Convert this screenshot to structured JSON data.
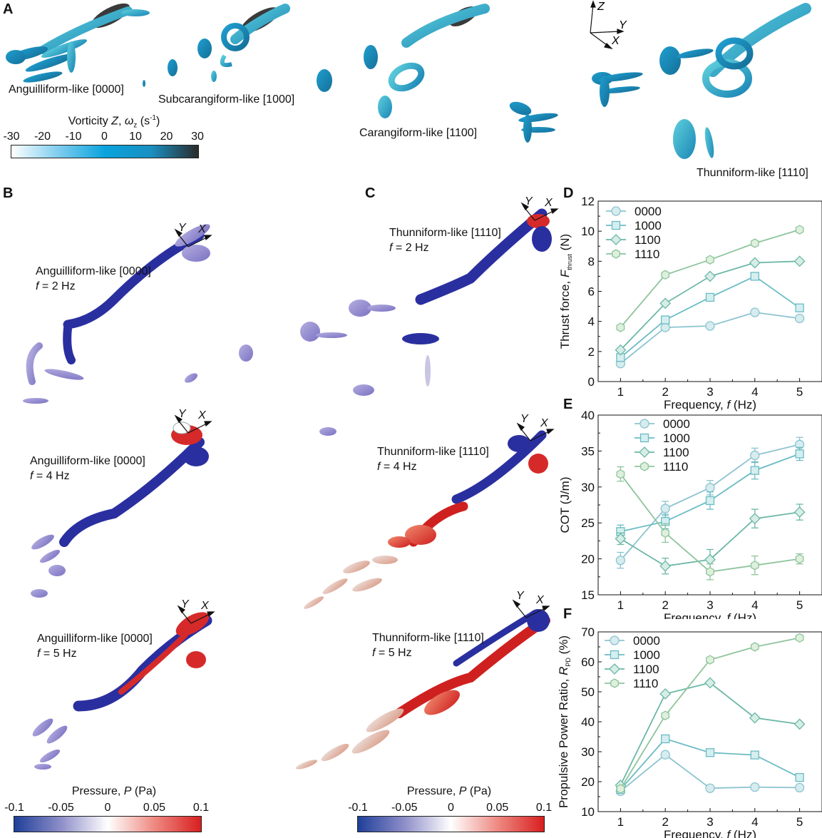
{
  "panel_labels": {
    "A": "A",
    "B": "B",
    "C": "C",
    "D": "D",
    "E": "E",
    "F": "F"
  },
  "panel_a": {
    "captions": [
      "Anguilliform-like [0000]",
      "Subcarangiform-like [1000]",
      "Carangiform-like [1100]",
      "Thunniform-like [1110]"
    ],
    "axes": {
      "z": "Z",
      "y": "Y",
      "x": "X"
    },
    "colorbar": {
      "title_prefix": "Vorticity ",
      "title_italic": "Z",
      "title_sep": ", ",
      "title_symbol": "ω",
      "title_sub": "z",
      "title_unit": " (s",
      "title_sup": "-1",
      "title_end": ")",
      "ticks": [
        "-30",
        "-20",
        "-10",
        "0",
        "10",
        "20",
        "30"
      ],
      "colors": [
        "#ffffff",
        "#7fcdee",
        "#0aa3de",
        "#1a8fc0",
        "#2a2a2a"
      ]
    }
  },
  "panel_b": {
    "captions": [
      {
        "name": "Anguilliform-like [0000]",
        "f_label": "f",
        "freq": " = 2 Hz"
      },
      {
        "name": "Anguilliform-like [0000]",
        "f_label": "f",
        "freq": " = 4 Hz"
      },
      {
        "name": "Anguilliform-like [0000]",
        "f_label": "f",
        "freq": " = 5 Hz"
      }
    ],
    "axes": {
      "y": "Y",
      "x": "X"
    },
    "colorbar": {
      "title_prefix": "Pressure, ",
      "title_italic": "P",
      "title_unit": " (Pa)",
      "ticks": [
        "-0.1",
        "-0.05",
        "0",
        "0.05",
        "0.1"
      ],
      "colors": [
        "#1f3f99",
        "#8e8ec9",
        "#ffffff",
        "#ee8a82",
        "#d81f1f"
      ]
    }
  },
  "panel_c": {
    "captions": [
      {
        "name": "Thunniform-like [1110]",
        "f_label": "f",
        "freq": " = 2 Hz"
      },
      {
        "name": "Thunniform-like [1110]",
        "f_label": "f",
        "freq": " = 4 Hz"
      },
      {
        "name": "Thunniform-like [1110]",
        "f_label": "f",
        "freq": " = 5 Hz"
      }
    ],
    "axes": {
      "y": "Y",
      "x": "X"
    },
    "colorbar": {
      "title_prefix": "Pressure, ",
      "title_italic": "P",
      "title_unit": " (Pa)",
      "ticks": [
        "-0.1",
        "-0.05",
        "0",
        "0.05",
        "0.1"
      ],
      "colors": [
        "#1f3f99",
        "#8e8ec9",
        "#ffffff",
        "#ee8a82",
        "#d81f1f"
      ]
    }
  },
  "series_style": [
    {
      "name": "0000",
      "marker": "circle",
      "color": "#8cc4d0",
      "fill": "#d6ecee"
    },
    {
      "name": "1000",
      "marker": "square",
      "color": "#6bbcc4",
      "fill": "#d5eeef"
    },
    {
      "name": "1100",
      "marker": "diamond",
      "color": "#6cb7a6",
      "fill": "#d6ede6"
    },
    {
      "name": "1110",
      "marker": "hexagon",
      "color": "#8ec49c",
      "fill": "#def0dd"
    }
  ],
  "chart_data": [
    {
      "id": "D",
      "type": "line",
      "x": [
        1,
        2,
        3,
        4,
        5
      ],
      "xlabel_prefix": "Frequency, ",
      "xlabel_italic": "f",
      "xlabel_unit": " (Hz)",
      "ylabel_prefix": "Thrust force, ",
      "ylabel_italic": "F",
      "ylabel_sub": "thrust",
      "ylabel_unit": " (N)",
      "xlim": [
        0.5,
        5.5
      ],
      "ylim": [
        0,
        12
      ],
      "xticks": [
        "1",
        "2",
        "3",
        "4",
        "5"
      ],
      "yticks": [
        "0",
        "2",
        "4",
        "6",
        "8",
        "10",
        "12"
      ],
      "legend": "top-left",
      "series": [
        {
          "name": "0000",
          "values": [
            1.2,
            3.6,
            3.7,
            4.6,
            4.2
          ]
        },
        {
          "name": "1000",
          "values": [
            1.6,
            4.1,
            5.6,
            7.0,
            4.9
          ]
        },
        {
          "name": "1100",
          "values": [
            2.1,
            5.2,
            7.0,
            7.9,
            8.0
          ]
        },
        {
          "name": "1110",
          "values": [
            3.6,
            7.1,
            8.1,
            9.2,
            10.1
          ]
        }
      ]
    },
    {
      "id": "E",
      "type": "line",
      "x": [
        1,
        2,
        3,
        4,
        5
      ],
      "xlabel_prefix": "Frequency, ",
      "xlabel_italic": "f",
      "xlabel_unit": " (Hz)",
      "ylabel_prefix": "COT (J/m)",
      "ylabel_italic": "",
      "ylabel_sub": "",
      "ylabel_unit": "",
      "xlim": [
        0.5,
        5.5
      ],
      "ylim": [
        15,
        40
      ],
      "xticks": [
        "1",
        "2",
        "3",
        "4",
        "5"
      ],
      "yticks": [
        "15",
        "20",
        "25",
        "30",
        "35",
        "40"
      ],
      "legend": "top-left",
      "series": [
        {
          "name": "0000",
          "values": [
            19.8,
            27.0,
            29.9,
            34.4,
            35.9
          ],
          "errors": [
            1.1,
            1.0,
            1.0,
            1.0,
            1.0
          ]
        },
        {
          "name": "1000",
          "values": [
            23.8,
            25.2,
            28.1,
            32.3,
            34.6
          ],
          "errors": [
            0.9,
            1.0,
            1.2,
            1.2,
            0.9
          ]
        },
        {
          "name": "1100",
          "values": [
            22.8,
            19.0,
            19.9,
            25.6,
            26.5
          ],
          "errors": [
            0.8,
            1.1,
            1.4,
            1.3,
            1.1
          ]
        },
        {
          "name": "1110",
          "values": [
            31.8,
            23.6,
            18.2,
            19.1,
            20.0
          ],
          "errors": [
            1.0,
            1.3,
            1.1,
            1.3,
            0.7
          ]
        }
      ]
    },
    {
      "id": "F",
      "type": "line",
      "x": [
        1,
        2,
        3,
        4,
        5
      ],
      "xlabel_prefix": "Frequency, ",
      "xlabel_italic": "f",
      "xlabel_unit": " (Hz)",
      "ylabel_prefix": "Propulsive Power Ratio, ",
      "ylabel_italic": "R",
      "ylabel_sub": "PD",
      "ylabel_unit": " (%)",
      "xlim": [
        0.5,
        5.5
      ],
      "ylim": [
        10,
        70
      ],
      "xticks": [
        "1",
        "2",
        "3",
        "4",
        "5"
      ],
      "yticks": [
        "10",
        "20",
        "30",
        "40",
        "50",
        "60",
        "70"
      ],
      "legend": "top-left",
      "series": [
        {
          "name": "0000",
          "values": [
            16.8,
            29.0,
            17.8,
            18.2,
            18.0
          ]
        },
        {
          "name": "1000",
          "values": [
            17.4,
            34.3,
            29.7,
            28.9,
            21.4
          ]
        },
        {
          "name": "1100",
          "values": [
            18.8,
            49.3,
            53.0,
            41.3,
            39.2
          ]
        },
        {
          "name": "1110",
          "values": [
            17.6,
            42.1,
            60.7,
            65.0,
            68.0
          ]
        }
      ]
    }
  ]
}
